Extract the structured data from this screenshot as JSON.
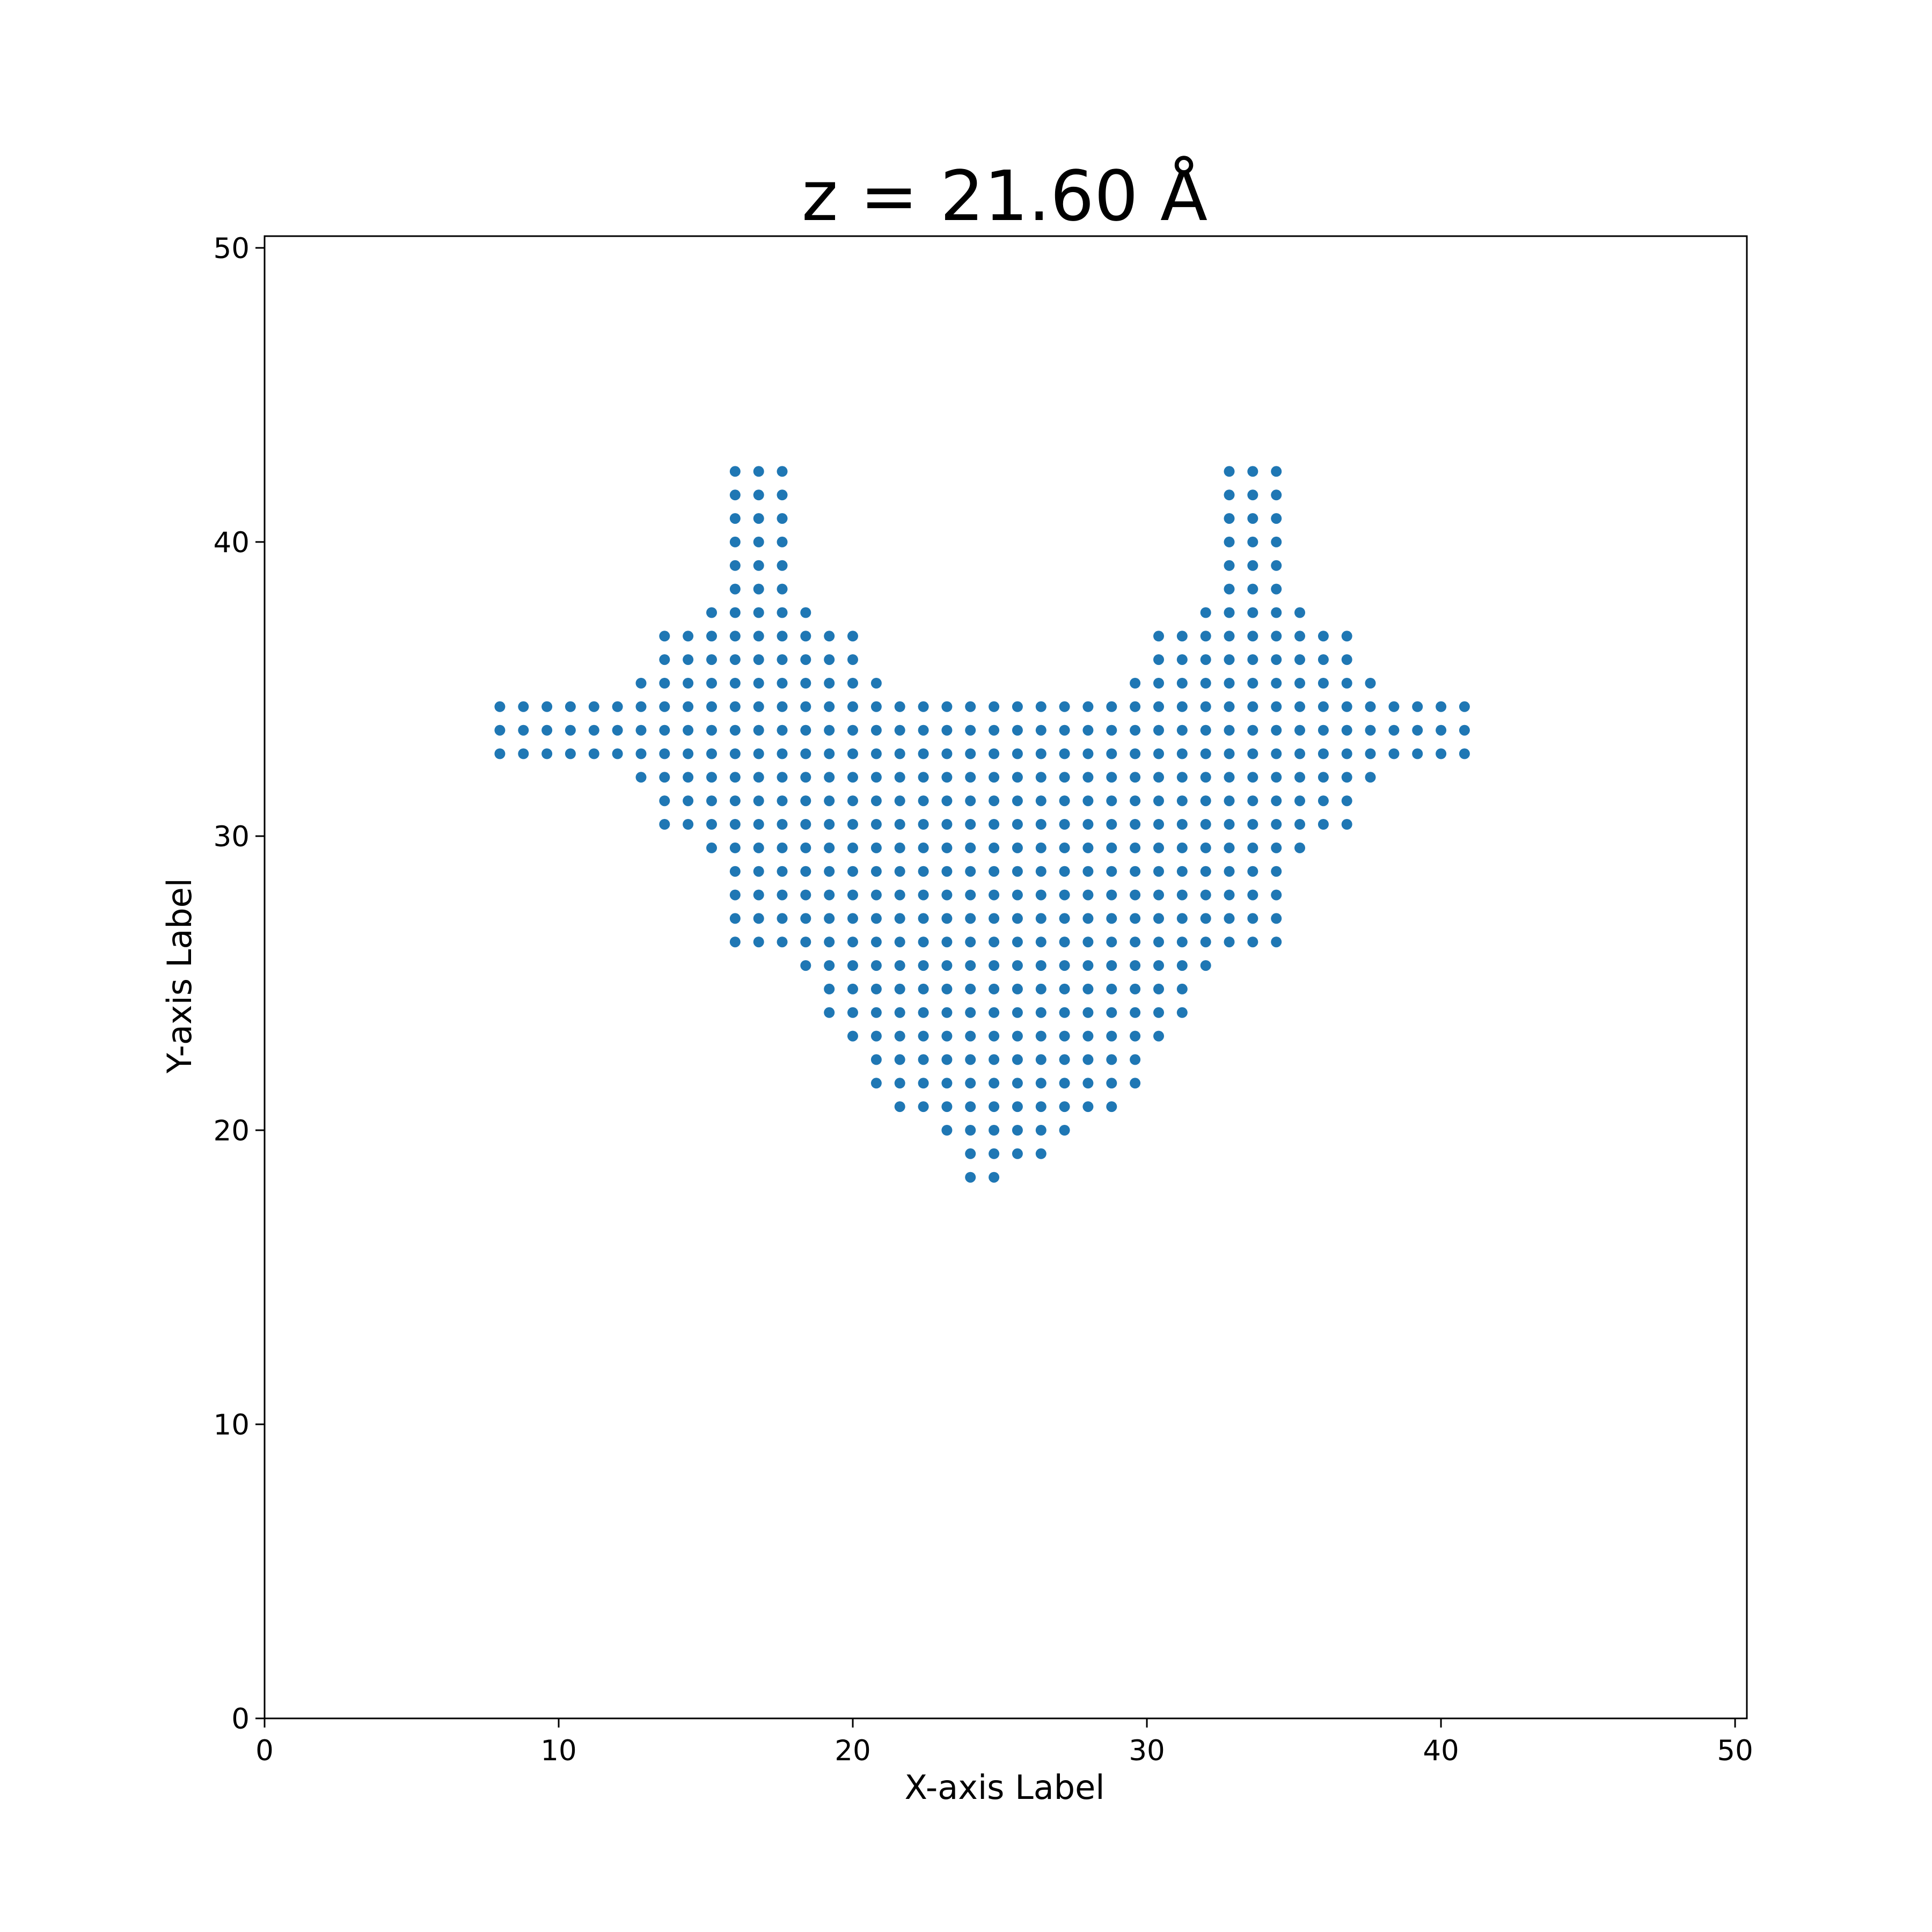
{
  "chart_data": {
    "type": "scatter",
    "title": "z = 21.60 Å",
    "xlabel": "X-axis Label",
    "ylabel": "Y-axis Label",
    "xlim": [
      0,
      50.4
    ],
    "ylim": [
      0,
      50.4
    ],
    "xticks": [
      0,
      10,
      20,
      30,
      40,
      50
    ],
    "yticks": [
      0,
      10,
      20,
      30,
      40,
      50
    ],
    "grid": false,
    "marker_color": "#1f77b4",
    "grid_spacing": 0.8,
    "rows": [
      {
        "y": 42.4,
        "x": [
          16.0,
          16.8,
          17.6,
          32.8,
          33.6,
          34.4
        ]
      },
      {
        "y": 41.6,
        "x": [
          16.0,
          16.8,
          17.6,
          32.8,
          33.6,
          34.4
        ]
      },
      {
        "y": 40.8,
        "x": [
          16.0,
          16.8,
          17.6,
          32.8,
          33.6,
          34.4
        ]
      },
      {
        "y": 40.0,
        "x": [
          16.0,
          16.8,
          17.6,
          32.8,
          33.6,
          34.4
        ]
      },
      {
        "y": 39.2,
        "x": [
          16.0,
          16.8,
          17.6,
          32.8,
          33.6,
          34.4
        ]
      },
      {
        "y": 38.4,
        "x": [
          16.0,
          16.8,
          17.6,
          32.8,
          33.6,
          34.4
        ]
      },
      {
        "y": 37.6,
        "x": [
          15.2,
          16.0,
          16.8,
          17.6,
          18.4,
          32.0,
          32.8,
          33.6,
          34.4,
          35.2
        ]
      },
      {
        "y": 36.8,
        "x": [
          13.6,
          14.4,
          15.2,
          16.0,
          16.8,
          17.6,
          18.4,
          19.2,
          20.0,
          30.4,
          31.2,
          32.0,
          32.8,
          33.6,
          34.4,
          35.2,
          36.0,
          36.8
        ]
      },
      {
        "y": 36.0,
        "x": [
          13.6,
          14.4,
          15.2,
          16.0,
          16.8,
          17.6,
          18.4,
          19.2,
          20.0,
          30.4,
          31.2,
          32.0,
          32.8,
          33.6,
          34.4,
          35.2,
          36.0,
          36.8
        ]
      },
      {
        "y": 35.2,
        "x": [
          12.8,
          13.6,
          14.4,
          15.2,
          16.0,
          16.8,
          17.6,
          18.4,
          19.2,
          20.0,
          20.8,
          29.6,
          30.4,
          31.2,
          32.0,
          32.8,
          33.6,
          34.4,
          35.2,
          36.0,
          36.8,
          37.6
        ]
      },
      {
        "y": 34.4,
        "x": [
          8.0,
          8.8,
          9.6,
          10.4,
          11.2,
          12.0,
          12.8,
          13.6,
          14.4,
          15.2,
          16.0,
          16.8,
          17.6,
          18.4,
          19.2,
          20.0,
          20.8,
          21.6,
          22.4,
          23.2,
          24.0,
          24.8,
          25.6,
          26.4,
          27.2,
          28.0,
          28.8,
          29.6,
          30.4,
          31.2,
          32.0,
          32.8,
          33.6,
          34.4,
          35.2,
          36.0,
          36.8,
          37.6,
          38.4,
          39.2,
          40.0,
          40.8
        ]
      },
      {
        "y": 33.6,
        "x": [
          8.0,
          8.8,
          9.6,
          10.4,
          11.2,
          12.0,
          12.8,
          13.6,
          14.4,
          15.2,
          16.0,
          16.8,
          17.6,
          18.4,
          19.2,
          20.0,
          20.8,
          21.6,
          22.4,
          23.2,
          24.0,
          24.8,
          25.6,
          26.4,
          27.2,
          28.0,
          28.8,
          29.6,
          30.4,
          31.2,
          32.0,
          32.8,
          33.6,
          34.4,
          35.2,
          36.0,
          36.8,
          37.6,
          38.4,
          39.2,
          40.0,
          40.8
        ]
      },
      {
        "y": 32.8,
        "x": [
          8.0,
          8.8,
          9.6,
          10.4,
          11.2,
          12.0,
          12.8,
          13.6,
          14.4,
          15.2,
          16.0,
          16.8,
          17.6,
          18.4,
          19.2,
          20.0,
          20.8,
          21.6,
          22.4,
          23.2,
          24.0,
          24.8,
          25.6,
          26.4,
          27.2,
          28.0,
          28.8,
          29.6,
          30.4,
          31.2,
          32.0,
          32.8,
          33.6,
          34.4,
          35.2,
          36.0,
          36.8,
          37.6,
          38.4,
          39.2,
          40.0,
          40.8
        ]
      },
      {
        "y": 32.0,
        "x": [
          12.8,
          13.6,
          14.4,
          15.2,
          16.0,
          16.8,
          17.6,
          18.4,
          19.2,
          20.0,
          20.8,
          21.6,
          22.4,
          23.2,
          24.0,
          24.8,
          25.6,
          26.4,
          27.2,
          28.0,
          28.8,
          29.6,
          30.4,
          31.2,
          32.0,
          32.8,
          33.6,
          34.4,
          35.2,
          36.0,
          36.8,
          37.6
        ]
      },
      {
        "y": 31.2,
        "x": [
          13.6,
          14.4,
          15.2,
          16.0,
          16.8,
          17.6,
          18.4,
          19.2,
          20.0,
          20.8,
          21.6,
          22.4,
          23.2,
          24.0,
          24.8,
          25.6,
          26.4,
          27.2,
          28.0,
          28.8,
          29.6,
          30.4,
          31.2,
          32.0,
          32.8,
          33.6,
          34.4,
          35.2,
          36.0,
          36.8
        ]
      },
      {
        "y": 30.4,
        "x": [
          13.6,
          14.4,
          15.2,
          16.0,
          16.8,
          17.6,
          18.4,
          19.2,
          20.0,
          20.8,
          21.6,
          22.4,
          23.2,
          24.0,
          24.8,
          25.6,
          26.4,
          27.2,
          28.0,
          28.8,
          29.6,
          30.4,
          31.2,
          32.0,
          32.8,
          33.6,
          34.4,
          35.2,
          36.0,
          36.8
        ]
      },
      {
        "y": 29.6,
        "x": [
          15.2,
          16.0,
          16.8,
          17.6,
          18.4,
          19.2,
          20.0,
          20.8,
          21.6,
          22.4,
          23.2,
          24.0,
          24.8,
          25.6,
          26.4,
          27.2,
          28.0,
          28.8,
          29.6,
          30.4,
          31.2,
          32.0,
          32.8,
          33.6,
          34.4,
          35.2
        ]
      },
      {
        "y": 28.8,
        "x": [
          16.0,
          16.8,
          17.6,
          18.4,
          19.2,
          20.0,
          20.8,
          21.6,
          22.4,
          23.2,
          24.0,
          24.8,
          25.6,
          26.4,
          27.2,
          28.0,
          28.8,
          29.6,
          30.4,
          31.2,
          32.0,
          32.8,
          33.6,
          34.4
        ]
      },
      {
        "y": 28.0,
        "x": [
          16.0,
          16.8,
          17.6,
          18.4,
          19.2,
          20.0,
          20.8,
          21.6,
          22.4,
          23.2,
          24.0,
          24.8,
          25.6,
          26.4,
          27.2,
          28.0,
          28.8,
          29.6,
          30.4,
          31.2,
          32.0,
          32.8,
          33.6,
          34.4
        ]
      },
      {
        "y": 27.2,
        "x": [
          16.0,
          16.8,
          17.6,
          18.4,
          19.2,
          20.0,
          20.8,
          21.6,
          22.4,
          23.2,
          24.0,
          24.8,
          25.6,
          26.4,
          27.2,
          28.0,
          28.8,
          29.6,
          30.4,
          31.2,
          32.0,
          32.8,
          33.6,
          34.4
        ]
      },
      {
        "y": 26.4,
        "x": [
          16.0,
          16.8,
          17.6,
          18.4,
          19.2,
          20.0,
          20.8,
          21.6,
          22.4,
          23.2,
          24.0,
          24.8,
          25.6,
          26.4,
          27.2,
          28.0,
          28.8,
          29.6,
          30.4,
          31.2,
          32.0,
          32.8,
          33.6,
          34.4
        ]
      },
      {
        "y": 25.6,
        "x": [
          18.4,
          19.2,
          20.0,
          20.8,
          21.6,
          22.4,
          23.2,
          24.0,
          24.8,
          25.6,
          26.4,
          27.2,
          28.0,
          28.8,
          29.6,
          30.4,
          31.2,
          32.0
        ]
      },
      {
        "y": 24.8,
        "x": [
          19.2,
          20.0,
          20.8,
          21.6,
          22.4,
          23.2,
          24.0,
          24.8,
          25.6,
          26.4,
          27.2,
          28.0,
          28.8,
          29.6,
          30.4,
          31.2
        ]
      },
      {
        "y": 24.0,
        "x": [
          19.2,
          20.0,
          20.8,
          21.6,
          22.4,
          23.2,
          24.0,
          24.8,
          25.6,
          26.4,
          27.2,
          28.0,
          28.8,
          29.6,
          30.4,
          31.2
        ]
      },
      {
        "y": 23.2,
        "x": [
          20.0,
          20.8,
          21.6,
          22.4,
          23.2,
          24.0,
          24.8,
          25.6,
          26.4,
          27.2,
          28.0,
          28.8,
          29.6,
          30.4
        ]
      },
      {
        "y": 22.4,
        "x": [
          20.8,
          21.6,
          22.4,
          23.2,
          24.0,
          24.8,
          25.6,
          26.4,
          27.2,
          28.0,
          28.8,
          29.6
        ]
      },
      {
        "y": 21.6,
        "x": [
          20.8,
          21.6,
          22.4,
          23.2,
          24.0,
          24.8,
          25.6,
          26.4,
          27.2,
          28.0,
          28.8,
          29.6
        ]
      },
      {
        "y": 20.8,
        "x": [
          21.6,
          22.4,
          23.2,
          24.0,
          24.8,
          25.6,
          26.4,
          27.2,
          28.0,
          28.8
        ]
      },
      {
        "y": 20.0,
        "x": [
          23.2,
          24.0,
          24.8,
          25.6,
          26.4,
          27.2
        ]
      },
      {
        "y": 19.2,
        "x": [
          24.0,
          24.8,
          25.6,
          26.4
        ]
      },
      {
        "y": 18.4,
        "x": [
          24.0,
          24.8
        ]
      }
    ]
  }
}
